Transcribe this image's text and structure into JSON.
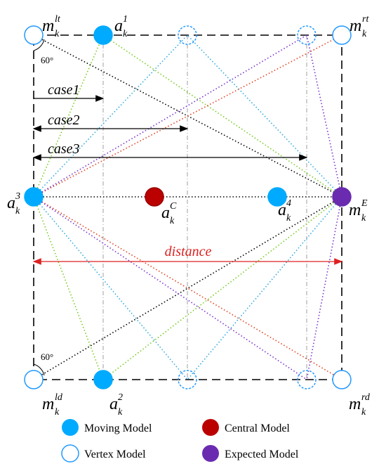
{
  "labels": [
    {
      "base": "m",
      "sub": "k",
      "sup": "lt"
    },
    {
      "base": "a",
      "sub": "k",
      "sup": "1"
    },
    {
      "base": "m",
      "sub": "k",
      "sup": "rt"
    },
    {
      "base": "a",
      "sub": "k",
      "sup": "3"
    },
    {
      "base": "a",
      "sub": "k",
      "sup": "C"
    },
    {
      "base": "a",
      "sub": "k",
      "sup": "4"
    },
    {
      "base": "m",
      "sub": "k",
      "sup": "E"
    },
    {
      "base": "m",
      "sub": "k",
      "sup": "ld"
    },
    {
      "base": "a",
      "sub": "k",
      "sup": "2"
    },
    {
      "base": "m",
      "sub": "k",
      "sup": "rd"
    }
  ],
  "annotations": {
    "case1": "case1",
    "case2": "case2",
    "case3": "case3",
    "distance": "distance",
    "angle_top": "60°",
    "angle_bottom": "60°"
  },
  "legend": [
    "Moving Model",
    "Central Model",
    "Vertex Model",
    "Expected Model"
  ]
}
